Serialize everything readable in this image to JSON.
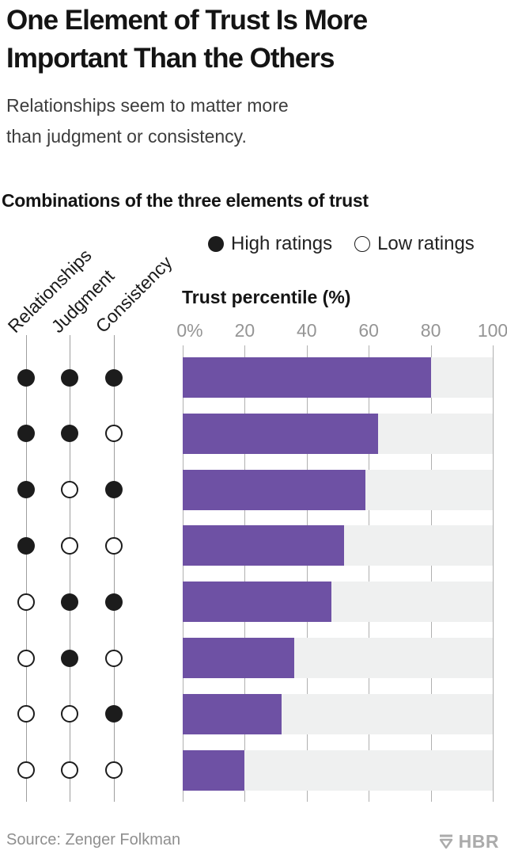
{
  "header": {
    "title_lines": [
      "One Element of Trust Is More",
      "Important Than the Others"
    ],
    "subtitle_lines": [
      "Relationships seem to matter more",
      "than judgment or consistency."
    ]
  },
  "chart": {
    "section_title": "Combinations of the three elements of trust",
    "legend": [
      {
        "marker": "filled",
        "label": "High ratings"
      },
      {
        "marker": "open",
        "label": "Low ratings"
      }
    ],
    "axis_title": "Trust percentile (%)",
    "tick_labels": [
      "0%",
      "20",
      "40",
      "60",
      "80",
      "100"
    ]
  },
  "chart_data": {
    "type": "bar",
    "orientation": "horizontal",
    "title": "Combinations of the three elements of trust",
    "xlabel": "Trust percentile (%)",
    "xlim": [
      0,
      100
    ],
    "xticks": [
      0,
      20,
      40,
      60,
      80,
      100
    ],
    "grid": true,
    "legend_position": "top-right",
    "legend": {
      "filled": "High ratings",
      "open": "Low ratings"
    },
    "columns": [
      "Relationships",
      "Judgment",
      "Consistency"
    ],
    "bar_color": "#6e51a4",
    "track_color": "#eff0f0",
    "rows": [
      {
        "pattern": [
          "high",
          "high",
          "high"
        ],
        "value": 80
      },
      {
        "pattern": [
          "high",
          "high",
          "low"
        ],
        "value": 63
      },
      {
        "pattern": [
          "high",
          "low",
          "high"
        ],
        "value": 59
      },
      {
        "pattern": [
          "high",
          "low",
          "low"
        ],
        "value": 52
      },
      {
        "pattern": [
          "low",
          "high",
          "high"
        ],
        "value": 48
      },
      {
        "pattern": [
          "low",
          "high",
          "low"
        ],
        "value": 36
      },
      {
        "pattern": [
          "low",
          "low",
          "high"
        ],
        "value": 32
      },
      {
        "pattern": [
          "low",
          "low",
          "low"
        ],
        "value": 20
      }
    ]
  },
  "footer": {
    "source": "Source: Zenger Folkman",
    "logo": "HBR"
  }
}
